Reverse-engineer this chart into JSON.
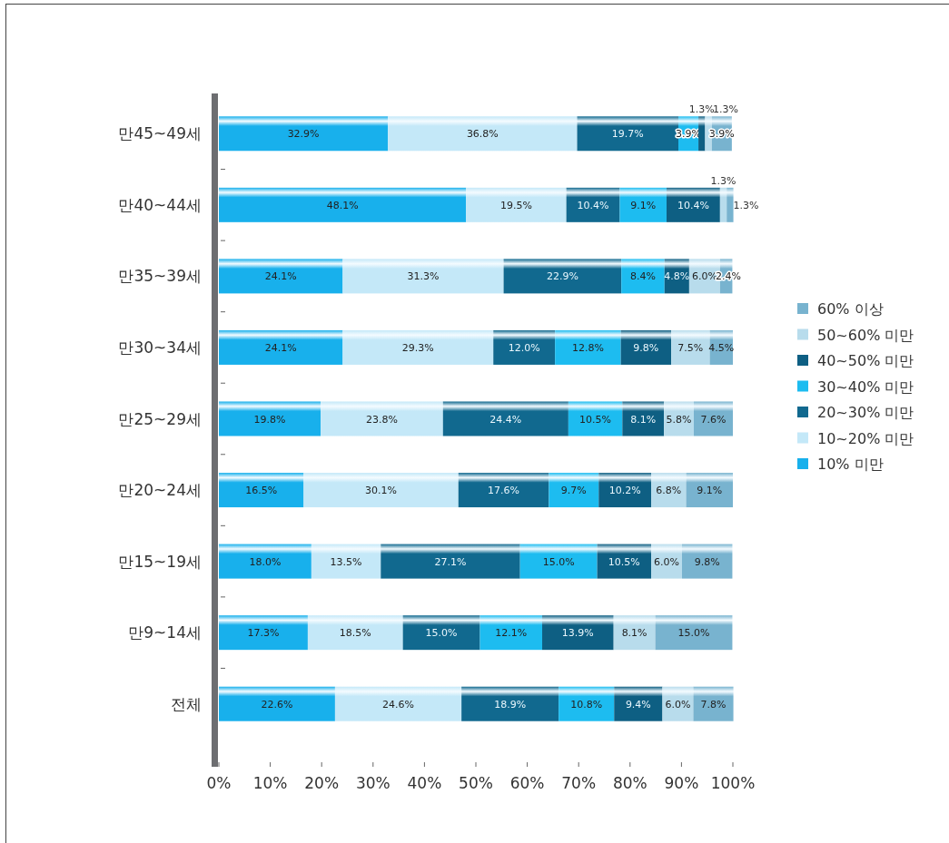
{
  "chart_data": {
    "type": "bar",
    "orientation": "horizontal",
    "stacked": true,
    "legend": "right",
    "grid": false,
    "categories": [
      "만45~49세",
      "만40~44세",
      "만35~39세",
      "만30~34세",
      "만25~29세",
      "만20~24세",
      "만15~19세",
      "만9~14세",
      "전체"
    ],
    "xlim": [
      0,
      100
    ],
    "xticks": [
      {
        "value": 0,
        "label": "0%"
      },
      {
        "value": 10,
        "label": "10%"
      },
      {
        "value": 20,
        "label": "20%"
      },
      {
        "value": 30,
        "label": "30%"
      },
      {
        "value": 40,
        "label": "40%"
      },
      {
        "value": 50,
        "label": "50%"
      },
      {
        "value": 60,
        "label": "60%"
      },
      {
        "value": 70,
        "label": "70%"
      },
      {
        "value": 80,
        "label": "80%"
      },
      {
        "value": 90,
        "label": "90%"
      },
      {
        "value": 100,
        "label": "100%"
      }
    ],
    "series": [
      {
        "name": "10% 미만",
        "color": "#18b0ec",
        "values": [
          32.9,
          48.1,
          24.1,
          24.1,
          19.8,
          16.5,
          18.0,
          17.3,
          22.6
        ],
        "value_labels": [
          "32.9%",
          "48.1%",
          "24.1%",
          "24.1%",
          "19.8%",
          "16.5%",
          "18.0%",
          "17.3%",
          "22.6%"
        ]
      },
      {
        "name": "10~20% 미만",
        "color": "#c4e8f8",
        "values": [
          36.8,
          19.5,
          31.3,
          29.3,
          23.8,
          30.1,
          13.5,
          18.5,
          24.6
        ],
        "value_labels": [
          "36.8%",
          "19.5%",
          "31.3%",
          "29.3%",
          "23.8%",
          "30.1%",
          "13.5%",
          "18.5%",
          "24.6%"
        ]
      },
      {
        "name": "20~30% 미만",
        "color": "#11698f",
        "values": [
          19.7,
          10.4,
          22.9,
          12.0,
          24.4,
          17.6,
          27.1,
          15.0,
          18.9
        ],
        "value_labels": [
          "19.7%",
          "10.4%",
          "22.9%",
          "12.0%",
          "24.4%",
          "17.6%",
          "27.1%",
          "15.0%",
          "18.9%"
        ]
      },
      {
        "name": "30~40% 미만",
        "color": "#1dbcf0",
        "values": [
          3.9,
          9.1,
          8.4,
          12.8,
          10.5,
          9.7,
          15.0,
          12.1,
          10.8
        ],
        "value_labels": [
          "3.9%",
          "9.1%",
          "8.4%",
          "12.8%",
          "10.5%",
          "9.7%",
          "15.0%",
          "12.1%",
          "10.8%"
        ]
      },
      {
        "name": "40~50% 미만",
        "color": "#0e5f83",
        "values": [
          1.3,
          10.4,
          4.8,
          9.8,
          8.1,
          10.2,
          10.5,
          13.9,
          9.4
        ],
        "value_labels": [
          "1.3%",
          "10.4%",
          "4.8%",
          "9.8%",
          "8.1%",
          "10.2%",
          "10.5%",
          "13.9%",
          "9.4%"
        ]
      },
      {
        "name": "50~60% 미만",
        "color": "#b8dcec",
        "values": [
          1.3,
          1.3,
          6.0,
          7.5,
          5.8,
          6.8,
          6.0,
          8.1,
          6.0
        ],
        "value_labels": [
          "1.3%",
          "1.3%",
          "6.0%",
          "7.5%",
          "5.8%",
          "6.8%",
          "6.0%",
          "8.1%",
          "6.0%"
        ]
      },
      {
        "name": "60% 이상",
        "color": "#78b3cf",
        "values": [
          3.9,
          1.3,
          2.4,
          4.5,
          7.6,
          9.1,
          9.8,
          15.0,
          7.8
        ],
        "value_labels": [
          "3.9%",
          "1.3%",
          "2.4%",
          "4.5%",
          "7.6%",
          "9.1%",
          "9.8%",
          "15.0%",
          "7.8%"
        ]
      }
    ]
  }
}
